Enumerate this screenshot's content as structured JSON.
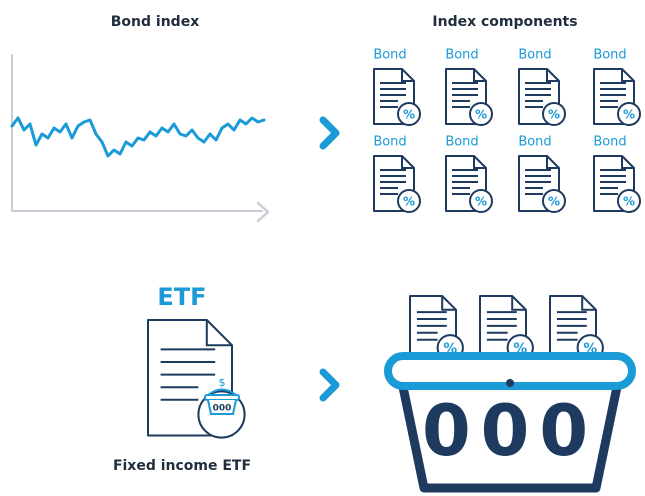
{
  "panels": [
    {
      "title": "Bond index"
    },
    {
      "title": "Index components",
      "items": [
        "Bond",
        "Bond",
        "Bond",
        "Bond",
        "Bond",
        "Bond",
        "Bond",
        "Bond"
      ]
    },
    {
      "title": "ETF",
      "caption": "Fixed income ETF"
    }
  ],
  "icons": {
    "percent": "%",
    "dollar": "$",
    "basket": "000"
  }
}
